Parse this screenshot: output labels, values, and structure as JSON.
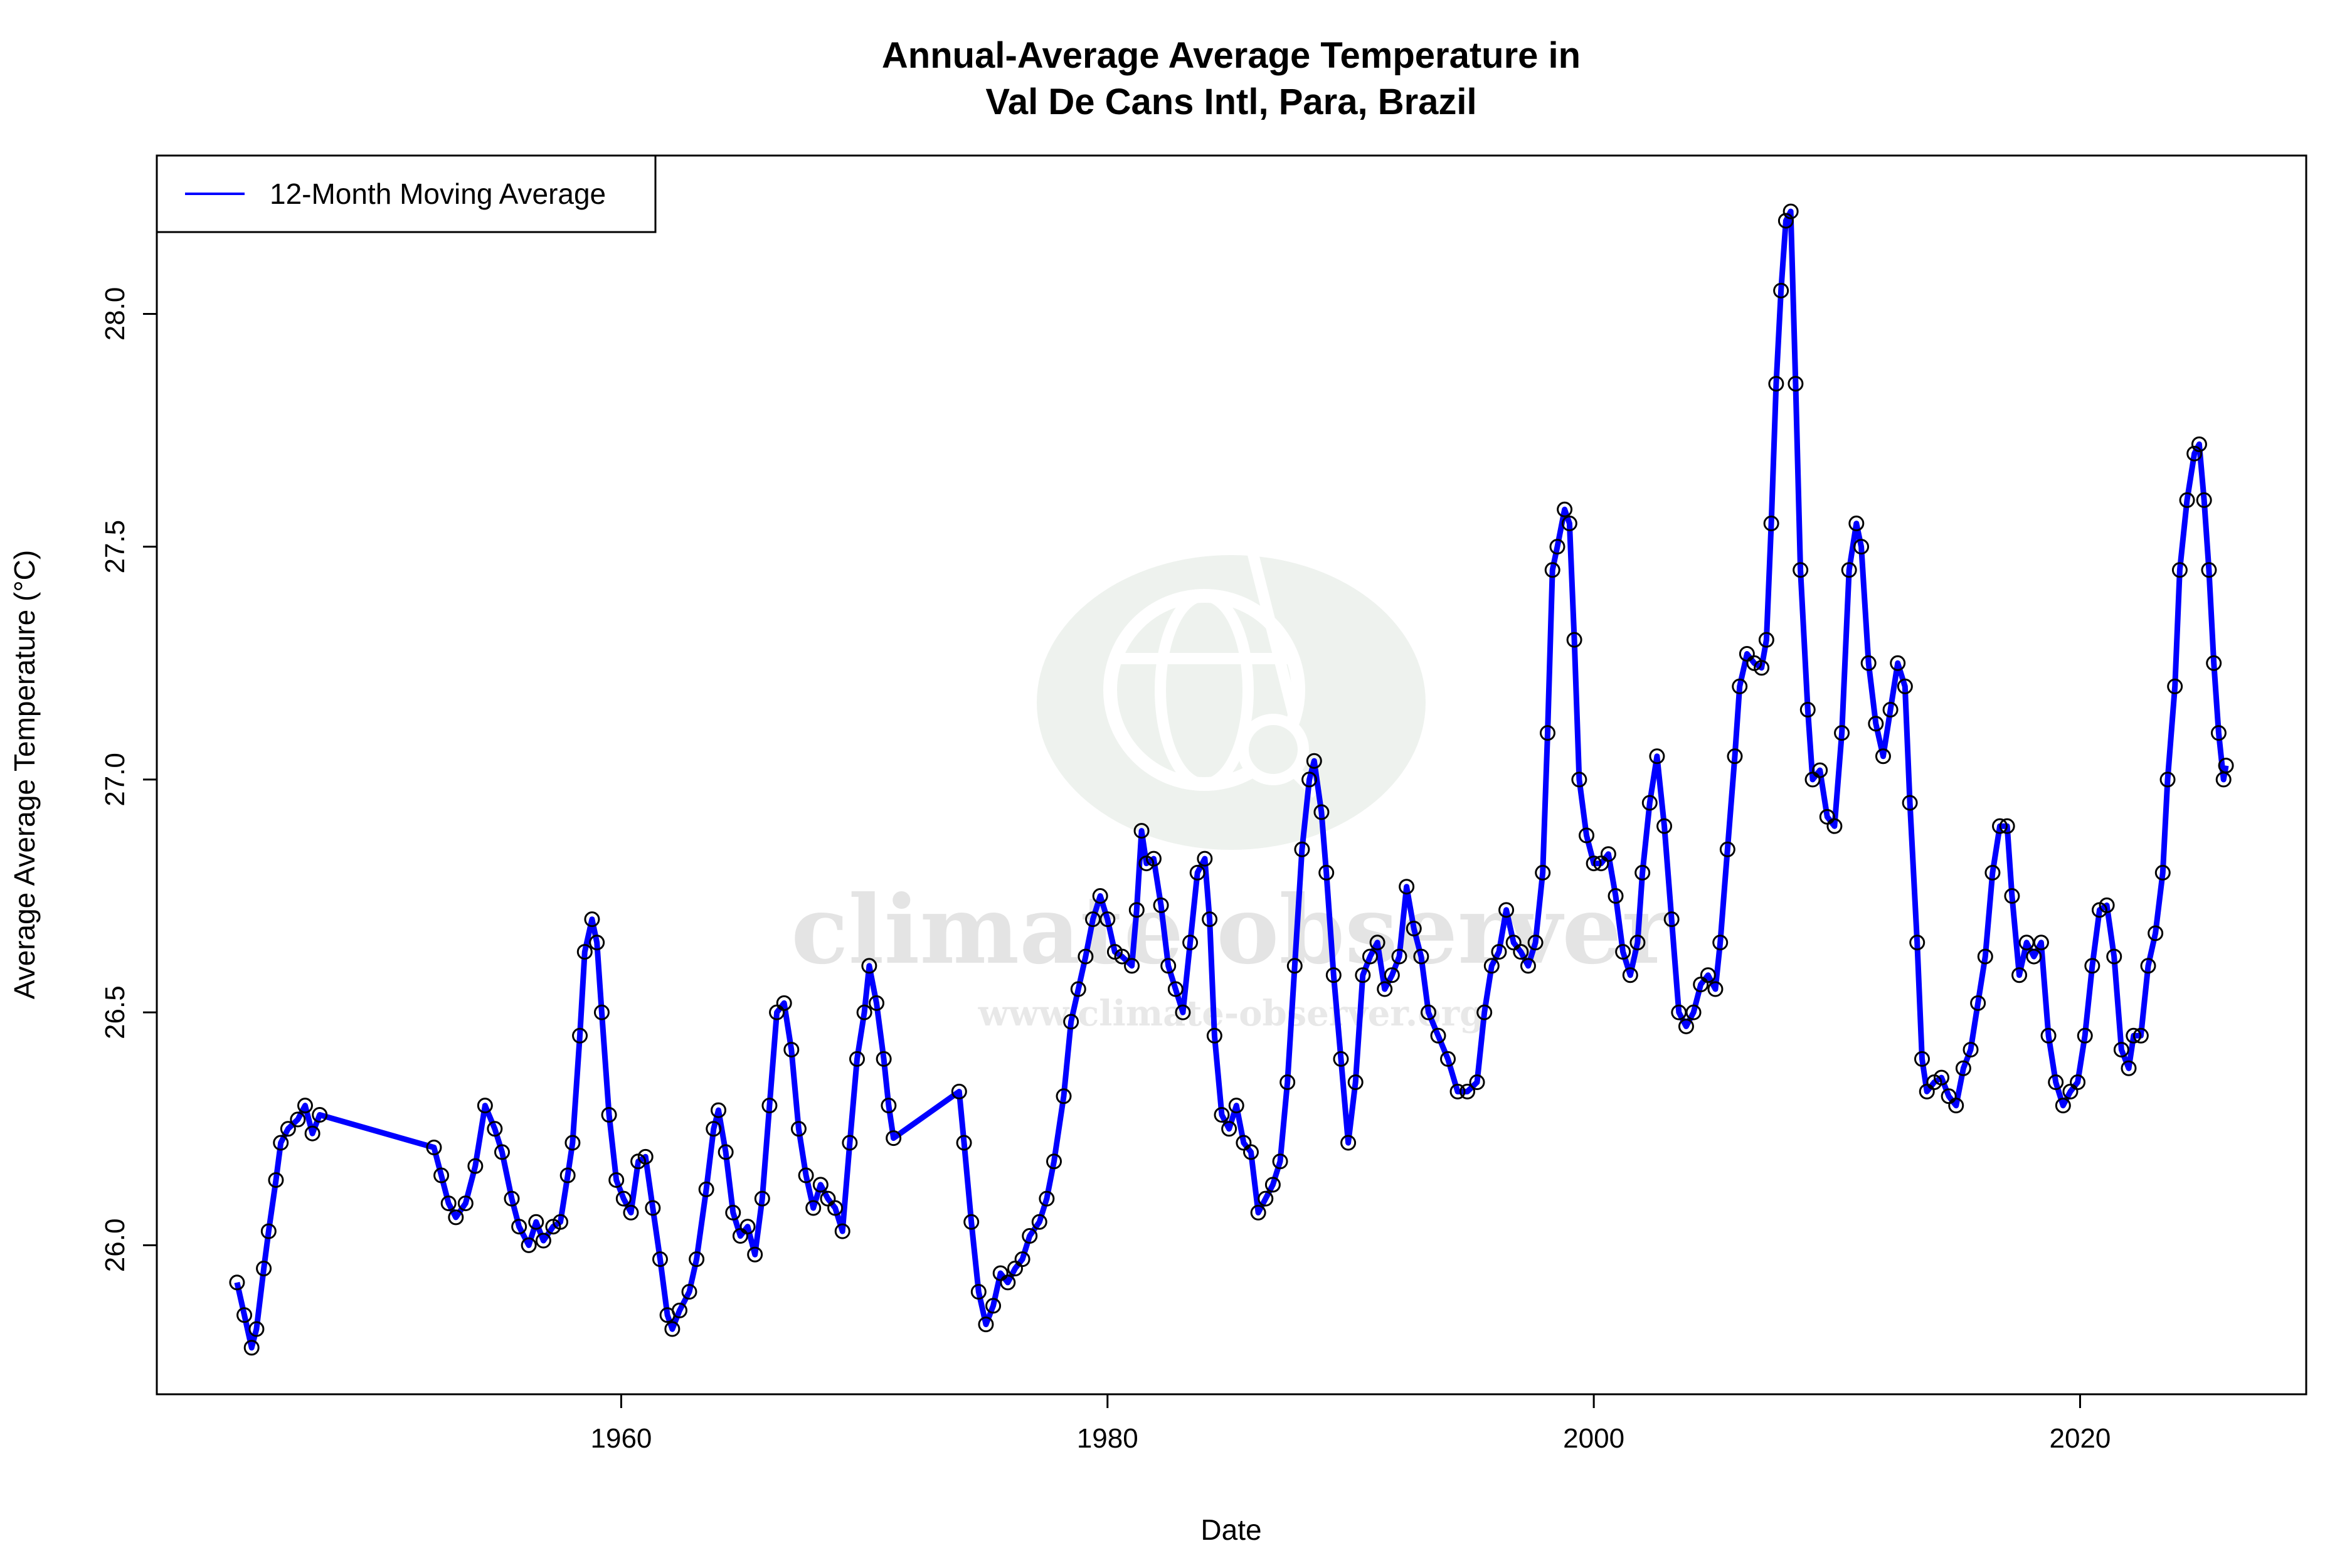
{
  "chart_data": {
    "type": "line",
    "title": "Annual-Average Average Temperature in",
    "subtitle": "Val De Cans Intl, Para, Brazil",
    "xlabel": "Date",
    "ylabel": "Average Average Temperature (°C)",
    "xlim": [
      1940.9,
      2029.3
    ],
    "ylim": [
      25.68,
      28.34
    ],
    "x_ticks": [
      1960,
      1980,
      2000,
      2020
    ],
    "x_tick_labels": [
      "1960",
      "1980",
      "2000",
      "2020"
    ],
    "y_ticks": [
      26.0,
      26.5,
      27.0,
      27.5,
      28.0
    ],
    "y_tick_labels": [
      "26.0",
      "26.5",
      "27.0",
      "27.5",
      "28.0"
    ],
    "grid": false,
    "legend": {
      "position": "top-left",
      "entries": [
        "12-Month Moving Average"
      ]
    },
    "colors": {
      "line": "#0000ff",
      "points": "#000000"
    },
    "markers": "open-circle",
    "watermark": {
      "name": "climate observer",
      "url": "www.climate-observer.org"
    },
    "series": [
      {
        "name": "12-Month Moving Average",
        "x": [
          1944.2,
          1944.5,
          1944.8,
          1945.0,
          1945.3,
          1945.5,
          1945.8,
          1946.0,
          1946.3,
          1946.7,
          1947.0,
          1947.3,
          1947.6,
          1952.3,
          1952.6,
          1952.9,
          1953.2,
          1953.6,
          1954.0,
          1954.4,
          1954.8,
          1955.1,
          1955.5,
          1955.8,
          1956.2,
          1956.5,
          1956.8,
          1957.2,
          1957.5,
          1957.8,
          1958.0,
          1958.3,
          1958.5,
          1958.8,
          1959.0,
          1959.2,
          1959.5,
          1959.8,
          1960.1,
          1960.4,
          1960.7,
          1961.0,
          1961.3,
          1961.6,
          1961.9,
          1962.1,
          1962.4,
          1962.8,
          1963.1,
          1963.5,
          1963.8,
          1964.0,
          1964.3,
          1964.6,
          1964.9,
          1965.2,
          1965.5,
          1965.8,
          1966.1,
          1966.4,
          1966.7,
          1967.0,
          1967.3,
          1967.6,
          1967.9,
          1968.2,
          1968.5,
          1968.8,
          1969.1,
          1969.4,
          1969.7,
          1970.0,
          1970.2,
          1970.5,
          1970.8,
          1971.0,
          1971.2,
          1973.9,
          1974.1,
          1974.4,
          1974.7,
          1975.0,
          1975.3,
          1975.6,
          1975.9,
          1976.2,
          1976.5,
          1976.8,
          1977.2,
          1977.5,
          1977.8,
          1978.2,
          1978.5,
          1978.8,
          1979.1,
          1979.4,
          1979.7,
          1980.0,
          1980.3,
          1980.6,
          1981.0,
          1981.2,
          1981.4,
          1981.6,
          1981.9,
          1982.2,
          1982.5,
          1982.8,
          1983.1,
          1983.4,
          1983.7,
          1984.0,
          1984.2,
          1984.4,
          1984.7,
          1985.0,
          1985.3,
          1985.6,
          1985.9,
          1986.2,
          1986.5,
          1986.8,
          1987.1,
          1987.4,
          1987.7,
          1988.0,
          1988.3,
          1988.5,
          1988.8,
          1989.0,
          1989.3,
          1989.6,
          1989.9,
          1990.2,
          1990.5,
          1990.8,
          1991.1,
          1991.4,
          1991.7,
          1992.0,
          1992.3,
          1992.6,
          1992.9,
          1993.2,
          1993.6,
          1994.0,
          1994.4,
          1994.8,
          1995.2,
          1995.5,
          1995.8,
          1996.1,
          1996.4,
          1996.7,
          1997.0,
          1997.3,
          1997.6,
          1997.9,
          1998.1,
          1998.3,
          1998.5,
          1998.8,
          1999.0,
          1999.2,
          1999.4,
          1999.7,
          2000.0,
          2000.3,
          2000.6,
          2000.9,
          2001.2,
          2001.5,
          2001.8,
          2002.0,
          2002.3,
          2002.6,
          2002.9,
          2003.2,
          2003.5,
          2003.8,
          2004.1,
          2004.4,
          2004.7,
          2005.0,
          2005.2,
          2005.5,
          2005.8,
          2006.0,
          2006.3,
          2006.6,
          2006.9,
          2007.1,
          2007.3,
          2007.5,
          2007.7,
          2007.9,
          2008.1,
          2008.3,
          2008.5,
          2008.8,
          2009.0,
          2009.3,
          2009.6,
          2009.9,
          2010.2,
          2010.5,
          2010.8,
          2011.0,
          2011.3,
          2011.6,
          2011.9,
          2012.2,
          2012.5,
          2012.8,
          2013.0,
          2013.3,
          2013.5,
          2013.7,
          2014.0,
          2014.3,
          2014.6,
          2014.9,
          2015.2,
          2015.5,
          2015.8,
          2016.1,
          2016.4,
          2016.7,
          2017.0,
          2017.2,
          2017.5,
          2017.8,
          2018.1,
          2018.4,
          2018.7,
          2019.0,
          2019.3,
          2019.6,
          2019.9,
          2020.2,
          2020.5,
          2020.8,
          2021.1,
          2021.4,
          2021.7,
          2022.0,
          2022.2,
          2022.5,
          2022.8,
          2023.1,
          2023.4,
          2023.6,
          2023.9,
          2024.1,
          2024.4,
          2024.7,
          2024.9,
          2025.1,
          2025.3,
          2025.5,
          2025.7,
          2025.9,
          2026.0
        ],
        "y": [
          25.92,
          25.85,
          25.78,
          25.82,
          25.95,
          26.03,
          26.14,
          26.22,
          26.25,
          26.27,
          26.3,
          26.24,
          26.28,
          26.21,
          26.15,
          26.09,
          26.06,
          26.09,
          26.17,
          26.3,
          26.25,
          26.2,
          26.1,
          26.04,
          26.0,
          26.05,
          26.01,
          26.04,
          26.05,
          26.15,
          26.22,
          26.45,
          26.63,
          26.7,
          26.65,
          26.5,
          26.28,
          26.14,
          26.1,
          26.07,
          26.18,
          26.19,
          26.08,
          25.97,
          25.85,
          25.82,
          25.86,
          25.9,
          25.97,
          26.12,
          26.25,
          26.29,
          26.2,
          26.07,
          26.02,
          26.04,
          25.98,
          26.1,
          26.3,
          26.5,
          26.52,
          26.42,
          26.25,
          26.15,
          26.08,
          26.13,
          26.1,
          26.08,
          26.03,
          26.22,
          26.4,
          26.5,
          26.6,
          26.52,
          26.4,
          26.3,
          26.23,
          26.33,
          26.22,
          26.05,
          25.9,
          25.83,
          25.87,
          25.94,
          25.92,
          25.95,
          25.97,
          26.02,
          26.05,
          26.1,
          26.18,
          26.32,
          26.48,
          26.55,
          26.62,
          26.7,
          26.75,
          26.7,
          26.63,
          26.62,
          26.6,
          26.72,
          26.89,
          26.82,
          26.83,
          26.73,
          26.6,
          26.55,
          26.5,
          26.65,
          26.8,
          26.83,
          26.7,
          26.45,
          26.28,
          26.25,
          26.3,
          26.22,
          26.2,
          26.07,
          26.1,
          26.13,
          26.18,
          26.35,
          26.6,
          26.85,
          27.0,
          27.04,
          26.93,
          26.8,
          26.58,
          26.4,
          26.22,
          26.35,
          26.58,
          26.62,
          26.65,
          26.55,
          26.58,
          26.62,
          26.77,
          26.68,
          26.62,
          26.5,
          26.45,
          26.4,
          26.33,
          26.33,
          26.35,
          26.5,
          26.6,
          26.63,
          26.72,
          26.65,
          26.63,
          26.6,
          26.65,
          26.8,
          27.1,
          27.45,
          27.5,
          27.58,
          27.55,
          27.3,
          27.0,
          26.88,
          26.82,
          26.82,
          26.84,
          26.75,
          26.63,
          26.58,
          26.65,
          26.8,
          26.95,
          27.05,
          26.9,
          26.7,
          26.5,
          26.47,
          26.5,
          26.56,
          26.58,
          26.55,
          26.65,
          26.85,
          27.05,
          27.2,
          27.27,
          27.25,
          27.24,
          27.3,
          27.55,
          27.85,
          28.05,
          28.2,
          28.22,
          27.85,
          27.45,
          27.15,
          27.0,
          27.02,
          26.92,
          26.9,
          27.1,
          27.45,
          27.55,
          27.5,
          27.25,
          27.12,
          27.05,
          27.15,
          27.25,
          27.2,
          26.95,
          26.65,
          26.4,
          26.33,
          26.35,
          26.36,
          26.32,
          26.3,
          26.38,
          26.42,
          26.52,
          26.62,
          26.8,
          26.9,
          26.9,
          26.75,
          26.58,
          26.65,
          26.62,
          26.65,
          26.45,
          26.35,
          26.3,
          26.33,
          26.35,
          26.45,
          26.6,
          26.72,
          26.73,
          26.62,
          26.42,
          26.38,
          26.45,
          26.45,
          26.6,
          26.67,
          26.8,
          27.0,
          27.2,
          27.45,
          27.6,
          27.7,
          27.72,
          27.6,
          27.45,
          27.25,
          27.1,
          27.0,
          27.03
        ]
      }
    ]
  }
}
